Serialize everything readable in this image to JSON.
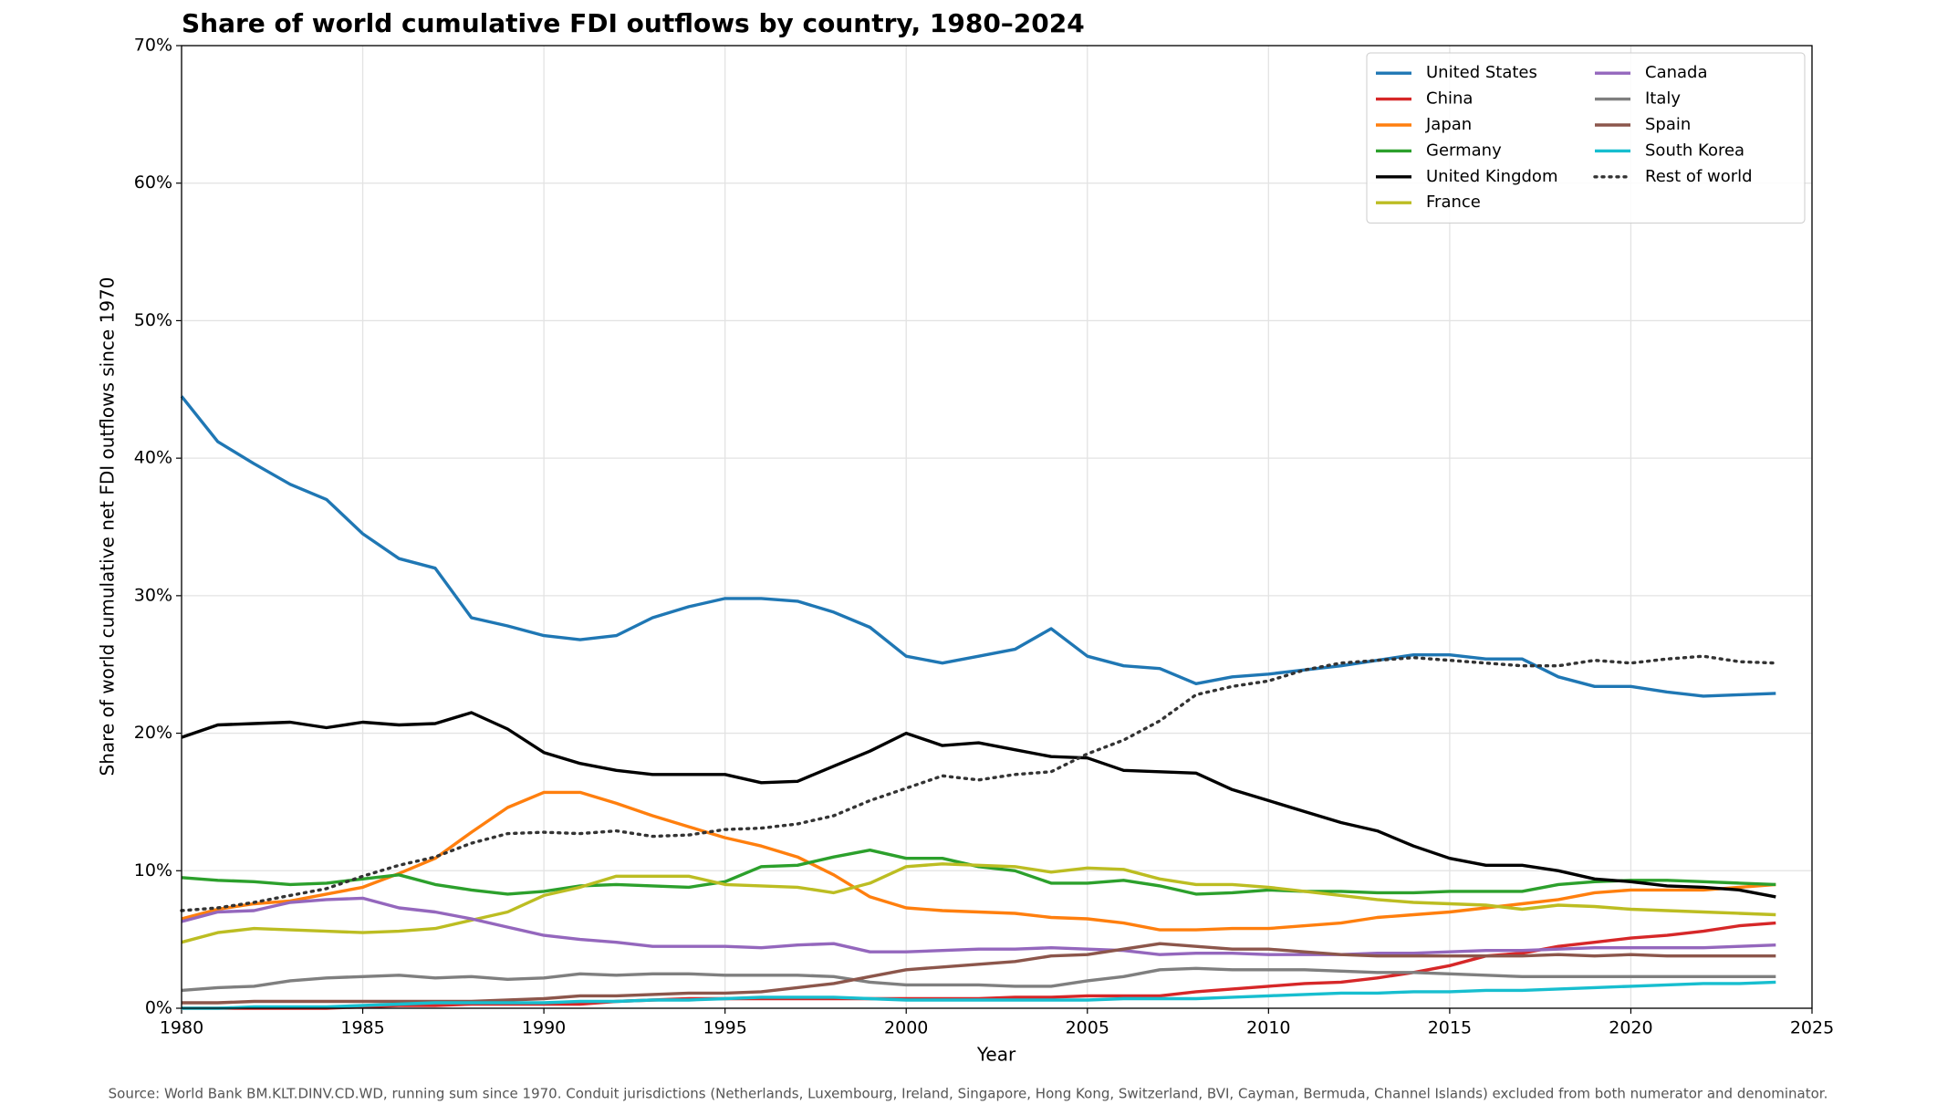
{
  "chart_data": {
    "type": "line",
    "title": "Share of world cumulative FDI outflows by country, 1980–2024",
    "xlabel": "Year",
    "ylabel": "Share of world cumulative net FDI outflows since 1970",
    "source": "Source: World Bank BM.KLT.DINV.CD.WD, running sum since 1970. Conduit jurisdictions (Netherlands, Luxembourg, Ireland, Singapore, Hong Kong, Switzerland, BVI, Cayman, Bermuda, Channel Islands) excluded from both numerator and denominator.",
    "x": [
      1980,
      1981,
      1982,
      1983,
      1984,
      1985,
      1986,
      1987,
      1988,
      1989,
      1990,
      1991,
      1992,
      1993,
      1994,
      1995,
      1996,
      1997,
      1998,
      1999,
      2000,
      2001,
      2002,
      2003,
      2004,
      2005,
      2006,
      2007,
      2008,
      2009,
      2010,
      2011,
      2012,
      2013,
      2014,
      2015,
      2016,
      2017,
      2018,
      2019,
      2020,
      2021,
      2022,
      2023,
      2024
    ],
    "xlim": [
      1980,
      2025
    ],
    "xticks": [
      1980,
      1985,
      1990,
      1995,
      2000,
      2005,
      2010,
      2015,
      2020,
      2025
    ],
    "ylim": [
      0,
      70
    ],
    "yticks": [
      {
        "value": 0,
        "label": "0%"
      },
      {
        "value": 10,
        "label": "10%"
      },
      {
        "value": 20,
        "label": "20%"
      },
      {
        "value": 30,
        "label": "30%"
      },
      {
        "value": 40,
        "label": "40%"
      },
      {
        "value": 50,
        "label": "50%"
      },
      {
        "value": 60,
        "label": "60%"
      },
      {
        "value": 70,
        "label": "70%"
      }
    ],
    "grid": true,
    "legend": "upper right",
    "legend_columns": 2,
    "series": [
      {
        "name": "United States",
        "color": "#1f77b4",
        "style": "solid",
        "values": [
          44.5,
          41.2,
          39.6,
          38.1,
          37.0,
          34.5,
          32.7,
          32.0,
          28.4,
          27.8,
          27.1,
          26.8,
          27.1,
          28.4,
          29.2,
          29.8,
          29.8,
          29.6,
          28.8,
          27.7,
          25.6,
          25.1,
          25.6,
          26.1,
          27.6,
          25.6,
          24.9,
          24.7,
          23.6,
          24.1,
          24.3,
          24.6,
          24.9,
          25.3,
          25.7,
          25.7,
          25.4,
          25.4,
          24.1,
          23.4,
          23.4,
          23.0,
          22.7,
          22.8,
          22.9
        ]
      },
      {
        "name": "China",
        "color": "#d62728",
        "style": "solid",
        "values": [
          0.0,
          0.0,
          0.0,
          0.0,
          0.0,
          0.1,
          0.2,
          0.2,
          0.3,
          0.3,
          0.3,
          0.3,
          0.5,
          0.6,
          0.7,
          0.7,
          0.7,
          0.7,
          0.7,
          0.7,
          0.7,
          0.7,
          0.7,
          0.8,
          0.8,
          0.9,
          0.9,
          0.9,
          1.2,
          1.4,
          1.6,
          1.8,
          1.9,
          2.2,
          2.6,
          3.1,
          3.8,
          4.0,
          4.5,
          4.8,
          5.1,
          5.3,
          5.6,
          6.0,
          6.2
        ]
      },
      {
        "name": "Japan",
        "color": "#ff7f0e",
        "style": "solid",
        "values": [
          6.5,
          7.2,
          7.6,
          7.8,
          8.3,
          8.8,
          9.8,
          10.9,
          12.8,
          14.6,
          15.7,
          15.7,
          14.9,
          14.0,
          13.2,
          12.4,
          11.8,
          11.0,
          9.7,
          8.1,
          7.3,
          7.1,
          7.0,
          6.9,
          6.6,
          6.5,
          6.2,
          5.7,
          5.7,
          5.8,
          5.8,
          6.0,
          6.2,
          6.6,
          6.8,
          7.0,
          7.3,
          7.6,
          7.9,
          8.4,
          8.6,
          8.6,
          8.6,
          8.8,
          9.0
        ]
      },
      {
        "name": "Germany",
        "color": "#2ca02c",
        "style": "solid",
        "values": [
          9.5,
          9.3,
          9.2,
          9.0,
          9.1,
          9.4,
          9.7,
          9.0,
          8.6,
          8.3,
          8.5,
          8.9,
          9.0,
          8.9,
          8.8,
          9.2,
          10.3,
          10.4,
          11.0,
          11.5,
          10.9,
          10.9,
          10.3,
          10.0,
          9.1,
          9.1,
          9.3,
          8.9,
          8.3,
          8.4,
          8.6,
          8.5,
          8.5,
          8.4,
          8.4,
          8.5,
          8.5,
          8.5,
          9.0,
          9.2,
          9.3,
          9.3,
          9.2,
          9.1,
          9.0
        ]
      },
      {
        "name": "United Kingdom",
        "color": "#000000",
        "style": "solid",
        "values": [
          19.7,
          20.6,
          20.7,
          20.8,
          20.4,
          20.8,
          20.6,
          20.7,
          21.5,
          20.3,
          18.6,
          17.8,
          17.3,
          17.0,
          17.0,
          17.0,
          16.4,
          16.5,
          17.6,
          18.7,
          20.0,
          19.1,
          19.3,
          18.8,
          18.3,
          18.2,
          17.3,
          17.2,
          17.1,
          15.9,
          15.1,
          14.3,
          13.5,
          12.9,
          11.8,
          10.9,
          10.4,
          10.4,
          10.0,
          9.4,
          9.2,
          8.9,
          8.8,
          8.6,
          8.1
        ]
      },
      {
        "name": "France",
        "color": "#bcbd22",
        "style": "solid",
        "values": [
          4.8,
          5.5,
          5.8,
          5.7,
          5.6,
          5.5,
          5.6,
          5.8,
          6.4,
          7.0,
          8.2,
          8.8,
          9.6,
          9.6,
          9.6,
          9.0,
          8.9,
          8.8,
          8.4,
          9.1,
          10.3,
          10.5,
          10.4,
          10.3,
          9.9,
          10.2,
          10.1,
          9.4,
          9.0,
          9.0,
          8.8,
          8.5,
          8.2,
          7.9,
          7.7,
          7.6,
          7.5,
          7.2,
          7.5,
          7.4,
          7.2,
          7.1,
          7.0,
          6.9,
          6.8
        ]
      },
      {
        "name": "Canada",
        "color": "#9467bd",
        "style": "solid",
        "values": [
          6.3,
          7.0,
          7.1,
          7.7,
          7.9,
          8.0,
          7.3,
          7.0,
          6.5,
          5.9,
          5.3,
          5.0,
          4.8,
          4.5,
          4.5,
          4.5,
          4.4,
          4.6,
          4.7,
          4.1,
          4.1,
          4.2,
          4.3,
          4.3,
          4.4,
          4.3,
          4.2,
          3.9,
          4.0,
          4.0,
          3.9,
          3.9,
          3.9,
          4.0,
          4.0,
          4.1,
          4.2,
          4.2,
          4.3,
          4.4,
          4.4,
          4.4,
          4.4,
          4.5,
          4.6
        ]
      },
      {
        "name": "Italy",
        "color": "#7f7f7f",
        "style": "solid",
        "values": [
          1.3,
          1.5,
          1.6,
          2.0,
          2.2,
          2.3,
          2.4,
          2.2,
          2.3,
          2.1,
          2.2,
          2.5,
          2.4,
          2.5,
          2.5,
          2.4,
          2.4,
          2.4,
          2.3,
          1.9,
          1.7,
          1.7,
          1.7,
          1.6,
          1.6,
          2.0,
          2.3,
          2.8,
          2.9,
          2.8,
          2.8,
          2.8,
          2.7,
          2.6,
          2.6,
          2.5,
          2.4,
          2.3,
          2.3,
          2.3,
          2.3,
          2.3,
          2.3,
          2.3,
          2.3
        ]
      },
      {
        "name": "Spain",
        "color": "#8c564b",
        "style": "solid",
        "values": [
          0.4,
          0.4,
          0.5,
          0.5,
          0.5,
          0.5,
          0.5,
          0.5,
          0.5,
          0.6,
          0.7,
          0.9,
          0.9,
          1.0,
          1.1,
          1.1,
          1.2,
          1.5,
          1.8,
          2.3,
          2.8,
          3.0,
          3.2,
          3.4,
          3.8,
          3.9,
          4.3,
          4.7,
          4.5,
          4.3,
          4.3,
          4.1,
          3.9,
          3.8,
          3.8,
          3.8,
          3.8,
          3.8,
          3.9,
          3.8,
          3.9,
          3.8,
          3.8,
          3.8,
          3.8
        ]
      },
      {
        "name": "South Korea",
        "color": "#17becf",
        "style": "solid",
        "values": [
          0.0,
          0.0,
          0.1,
          0.1,
          0.1,
          0.2,
          0.3,
          0.4,
          0.4,
          0.4,
          0.4,
          0.5,
          0.5,
          0.6,
          0.6,
          0.7,
          0.8,
          0.8,
          0.8,
          0.7,
          0.6,
          0.6,
          0.6,
          0.6,
          0.6,
          0.6,
          0.7,
          0.7,
          0.7,
          0.8,
          0.9,
          1.0,
          1.1,
          1.1,
          1.2,
          1.2,
          1.3,
          1.3,
          1.4,
          1.5,
          1.6,
          1.7,
          1.8,
          1.8,
          1.9
        ]
      },
      {
        "name": "Rest of world",
        "color": "#333333",
        "style": "dotted",
        "values": [
          7.1,
          7.3,
          7.7,
          8.2,
          8.7,
          9.6,
          10.4,
          11.0,
          12.0,
          12.7,
          12.8,
          12.7,
          12.9,
          12.5,
          12.6,
          13.0,
          13.1,
          13.4,
          14.0,
          15.1,
          16.0,
          16.9,
          16.6,
          17.0,
          17.2,
          18.5,
          19.5,
          20.9,
          22.8,
          23.4,
          23.8,
          24.6,
          25.1,
          25.3,
          25.5,
          25.3,
          25.1,
          24.9,
          24.9,
          25.3,
          25.1,
          25.4,
          25.6,
          25.2,
          25.1
        ]
      }
    ]
  }
}
